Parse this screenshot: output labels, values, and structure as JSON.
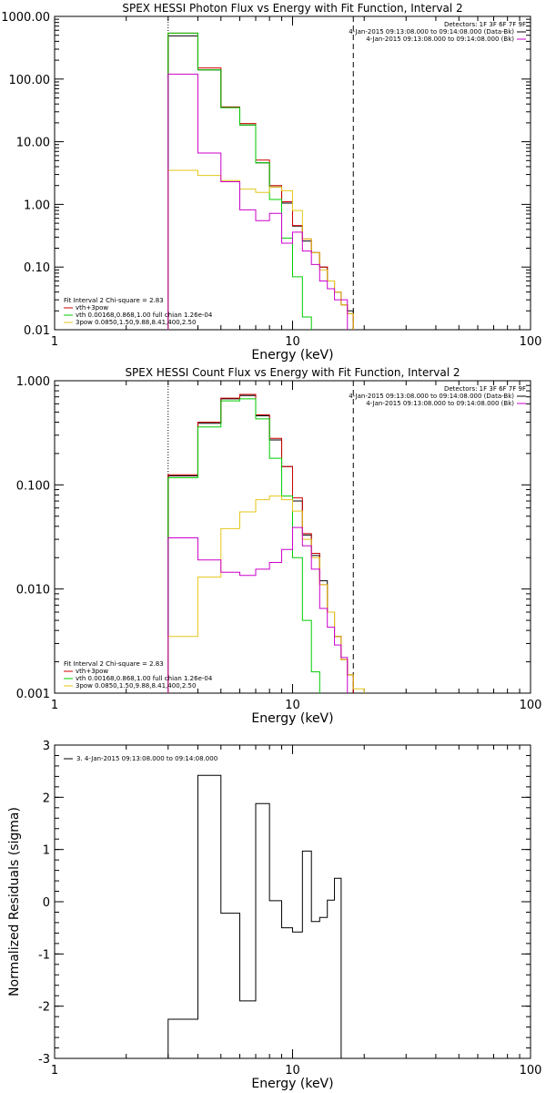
{
  "chart_data": [
    {
      "type": "line",
      "title": "SPEX HESSI Photon Flux vs Energy with Fit Function, Interval 2",
      "xlabel": "Energy (keV)",
      "ylabel": "",
      "xscale": "log",
      "yscale": "log",
      "xlim": [
        1,
        100
      ],
      "ylim": [
        0.01,
        1000
      ],
      "xticks": [
        "1",
        "10",
        "100"
      ],
      "yticks": [
        "0.01",
        "0.10",
        "1.00",
        "10.00",
        "100.00",
        "1000.00"
      ],
      "vlines": {
        "dotted": 3,
        "dashed": 18
      },
      "bin_edges": [
        3.0,
        4.0,
        5.0,
        6.0,
        7.0,
        8.0,
        9.0,
        10.0,
        11.0,
        12.0,
        13.0,
        14.0,
        15.0,
        16.0,
        17.0,
        18.0,
        20.0
      ],
      "series": [
        {
          "name": "",
          "color": "#000000",
          "values": [
            490,
            140,
            35,
            18.5,
            4.6,
            1.9,
            1.05,
            0.45,
            0.26,
            0.17,
            0.1,
            0.06,
            0.04,
            0.025,
            0.02,
            null
          ]
        },
        {
          "name": "vth+3pow",
          "color": "#cc0000",
          "values": [
            540,
            150,
            36,
            19.5,
            5.1,
            2.0,
            1.1,
            0.46,
            0.28,
            0.17,
            0.1,
            0.06,
            0.04,
            0.025,
            0.018,
            null
          ]
        },
        {
          "name": "vth 0.00168,0.868,1.00 full chian 1.26e-04",
          "color": "#00cc00",
          "values": [
            540,
            140,
            35,
            18.5,
            4.6,
            1.2,
            0.29,
            0.07,
            0.016,
            null,
            null,
            null,
            null,
            null,
            null,
            null
          ]
        },
        {
          "name": "3pow 0.0850,1.50,9.88,8.41,400,2.50",
          "color": "#e6c619",
          "values": [
            3.5,
            2.9,
            2.4,
            1.75,
            1.55,
            1.9,
            1.65,
            0.8,
            0.28,
            0.17,
            0.09,
            0.06,
            0.04,
            0.025,
            0.018,
            null
          ]
        },
        {
          "name": "",
          "color": "#cc00cc",
          "values": [
            120,
            6.6,
            2.3,
            0.82,
            0.55,
            0.72,
            0.24,
            0.36,
            0.18,
            0.11,
            0.06,
            0.045,
            0.03,
            0.03,
            null,
            null
          ]
        }
      ],
      "legend_top": {
        "header": "Detectors: 1F 3F 6F 7F 9F",
        "entries": [
          {
            "label": "4-Jan-2015 09:13:08.000 to 09:14:08.000 (Data-Bk)",
            "color": "#000000"
          },
          {
            "label": "4-Jan-2015 09:13:08.000 to 09:14:08.000 (Bk)",
            "color": "#cc00cc"
          }
        ]
      },
      "legend_bottom": {
        "header": "Fit Interval 2   Chi-square = 2.83",
        "entries": [
          {
            "label": "vth+3pow",
            "color": "#cc0000"
          },
          {
            "label": "vth 0.00168,0.868,1.00  full chian 1.26e-04",
            "color": "#00cc00"
          },
          {
            "label": "3pow 0.0850,1.50,9.88,8.41,400,2.50",
            "color": "#e6c619"
          }
        ]
      }
    },
    {
      "type": "line",
      "title": "SPEX HESSI Count Flux vs Energy with Fit Function, Interval 2",
      "xlabel": "Energy (keV)",
      "ylabel": "",
      "xscale": "log",
      "yscale": "log",
      "xlim": [
        1,
        100
      ],
      "ylim": [
        0.001,
        1.0
      ],
      "xticks": [
        "1",
        "10",
        "100"
      ],
      "yticks": [
        "0.001",
        "0.010",
        "0.100",
        "1.000"
      ],
      "vlines": {
        "dotted": 3,
        "dashed": 18
      },
      "bin_edges": [
        3.0,
        4.0,
        5.0,
        6.0,
        7.0,
        8.0,
        9.0,
        10.0,
        11.0,
        12.0,
        13.0,
        14.0,
        15.0,
        16.0,
        17.0,
        18.0,
        20.0
      ],
      "series": [
        {
          "name": "",
          "color": "#000000",
          "values": [
            0.122,
            0.39,
            0.67,
            0.72,
            0.46,
            0.27,
            0.15,
            0.07,
            0.033,
            0.021,
            0.012,
            0.006,
            0.0035,
            0.0021,
            0.0015,
            null
          ]
        },
        {
          "name": "vth+3pow",
          "color": "#cc0000",
          "values": [
            0.125,
            0.4,
            0.68,
            0.74,
            0.47,
            0.28,
            0.15,
            0.075,
            0.034,
            0.022,
            0.011,
            0.006,
            0.0035,
            0.0021,
            0.0015,
            null
          ]
        },
        {
          "name": "vth 0.00168,0.868,1.00 full chian 1.26e-04",
          "color": "#00cc00",
          "values": [
            0.117,
            0.36,
            0.64,
            0.67,
            0.43,
            0.18,
            0.078,
            0.02,
            0.005,
            0.0016,
            null,
            null,
            null,
            null,
            null,
            null
          ]
        },
        {
          "name": "3pow 0.0850,1.50,9.88,8.41,400,2.50",
          "color": "#e6c619",
          "values": [
            0.0035,
            0.013,
            0.038,
            0.055,
            0.072,
            0.078,
            0.072,
            0.056,
            0.03,
            0.02,
            0.011,
            0.006,
            0.0035,
            0.0021,
            0.0015,
            0.0011
          ]
        },
        {
          "name": "",
          "color": "#cc00cc",
          "values": [
            0.031,
            0.019,
            0.0145,
            0.0135,
            0.0155,
            0.018,
            0.024,
            0.039,
            0.026,
            0.0155,
            0.0065,
            0.0043,
            0.0029,
            0.0022,
            null,
            null
          ]
        }
      ],
      "legend_top": {
        "header": "Detectors: 1F 3F 6F 7F 9F",
        "entries": [
          {
            "label": "4-Jan-2015 09:13:08.000 to 09:14:08.000 (Data-Bk)",
            "color": "#000000"
          },
          {
            "label": "4-Jan-2015 09:13:08.000 to 09:14:08.000 (Bk)",
            "color": "#cc00cc"
          }
        ]
      },
      "legend_bottom": {
        "header": "Fit Interval 2   Chi-square = 2.83",
        "entries": [
          {
            "label": "vth+3pow",
            "color": "#cc0000"
          },
          {
            "label": "vth 0.00168,0.868,1.00  full chian 1.26e-04",
            "color": "#00cc00"
          },
          {
            "label": "3pow 0.0850,1.50,9.88,8.41,400,2.50",
            "color": "#e6c619"
          }
        ]
      }
    },
    {
      "type": "line",
      "title": "",
      "xlabel": "Energy (keV)",
      "ylabel": "Normalized Residuals (sigma)",
      "xscale": "log",
      "yscale": "linear",
      "xlim": [
        1,
        100
      ],
      "ylim": [
        -3,
        3
      ],
      "xticks": [
        "1",
        "10",
        "100"
      ],
      "yticks": [
        "-3",
        "-2",
        "-1",
        "0",
        "1",
        "2",
        "3"
      ],
      "bin_edges": [
        3.0,
        4.0,
        5.0,
        6.0,
        7.0,
        8.0,
        9.0,
        10.0,
        11.0,
        12.0,
        13.0,
        14.0,
        15.0,
        16.0,
        17.0,
        18.0
      ],
      "series": [
        {
          "name": "3. 4-Jan-2015 09:13:08.000 to 09:14:08.000",
          "color": "#000000",
          "values": [
            -2.25,
            2.42,
            -0.22,
            -1.9,
            1.88,
            0.02,
            -0.5,
            -0.58,
            0.97,
            -0.38,
            -0.3,
            0.03,
            0.45,
            null,
            null
          ]
        }
      ],
      "legend": {
        "entries": [
          {
            "label": "3. 4-Jan-2015 09:13:08.000 to 09:14:08.000",
            "color": "#000000"
          }
        ]
      }
    }
  ]
}
